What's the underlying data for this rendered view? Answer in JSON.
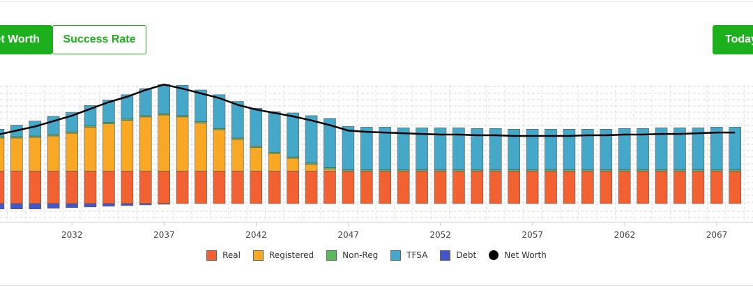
{
  "buttons": {
    "net_worth": "Net Worth",
    "success_rate": "Success Rate",
    "today": "Today's $"
  },
  "colors": {
    "accent": "#1db01d",
    "real": "#f26131",
    "registered": "#f9a825",
    "nonreg": "#5cb85c",
    "tfsa": "#45a8c8",
    "debt": "#4557c8",
    "networth": "#000000"
  },
  "chart_data": {
    "type": "bar",
    "x": [
      2028,
      2029,
      2030,
      2031,
      2032,
      2033,
      2034,
      2035,
      2036,
      2037,
      2038,
      2039,
      2040,
      2041,
      2042,
      2043,
      2044,
      2045,
      2046,
      2047,
      2048,
      2049,
      2050,
      2051,
      2052,
      2053,
      2054,
      2055,
      2056,
      2057,
      2058,
      2059,
      2060,
      2061,
      2062,
      2063,
      2064,
      2065,
      2066,
      2067,
      2068
    ],
    "xticks": [
      "2032",
      "2037",
      "2042",
      "2047",
      "2052",
      "2057",
      "2062",
      "2067"
    ],
    "series": [
      {
        "name": "Real",
        "color_key": "real",
        "values": [
          48,
          48,
          48,
          48,
          48,
          48,
          48,
          48,
          48,
          48,
          48,
          48,
          48,
          48,
          48,
          48,
          48,
          48,
          48,
          48,
          48,
          48,
          48,
          48,
          48,
          48,
          48,
          48,
          48,
          48,
          48,
          48,
          48,
          48,
          48,
          48,
          48,
          48,
          48,
          48,
          48
        ]
      },
      {
        "name": "Registered",
        "color_key": "registered",
        "values": [
          49,
          49,
          50,
          52,
          56,
          65,
          70,
          75,
          80,
          83,
          80,
          71,
          61,
          47,
          35,
          26,
          19,
          10,
          3,
          0,
          0,
          0,
          0,
          0,
          0,
          0,
          0,
          0,
          0,
          0,
          0,
          0,
          0,
          0,
          0,
          0,
          0,
          0,
          0,
          0,
          0
        ]
      },
      {
        "name": "Non-Reg",
        "color_key": "nonreg",
        "values": [
          2,
          2,
          2,
          2,
          2,
          2,
          2,
          2,
          2,
          2,
          2,
          2,
          2,
          2,
          2,
          2,
          2,
          2,
          2,
          2,
          2,
          2,
          2,
          2,
          2,
          2,
          2,
          2,
          2,
          2,
          2,
          2,
          2,
          2,
          2,
          2,
          2,
          2,
          2,
          2,
          2
        ]
      },
      {
        "name": "TFSA",
        "color_key": "tfsa",
        "values": [
          11,
          17,
          22,
          27,
          29,
          30,
          33,
          36,
          40,
          43,
          45,
          47,
          50,
          54,
          56,
          60,
          65,
          70,
          73,
          64,
          63,
          63,
          62,
          62,
          62,
          62,
          61,
          61,
          60,
          60,
          60,
          60,
          60,
          60,
          61,
          61,
          62,
          62,
          62,
          63,
          63
        ]
      },
      {
        "name": "Debt",
        "color_key": "debt",
        "values": [
          -8,
          -8,
          -8,
          -7,
          -6,
          -5,
          -4,
          -3,
          -2,
          -1,
          0,
          0,
          0,
          0,
          0,
          0,
          0,
          0,
          0,
          0,
          0,
          0,
          0,
          0,
          0,
          0,
          0,
          0,
          0,
          0,
          0,
          0,
          0,
          0,
          0,
          0,
          0,
          0,
          0,
          0,
          0
        ]
      },
      {
        "name": "Net Worth",
        "color_key": "networth",
        "type": "line",
        "values": [
          102,
          108,
          114,
          122,
          130,
          140,
          150,
          158,
          168,
          176,
          170,
          163,
          156,
          146,
          139,
          134,
          129,
          123,
          116,
          108,
          106,
          105,
          104,
          103,
          102,
          102,
          101,
          101,
          100,
          100,
          100,
          100,
          101,
          101,
          102,
          102,
          103,
          103,
          104,
          105,
          105
        ]
      }
    ],
    "ylim": [
      -15,
      180
    ],
    "grid": true,
    "legend": "bottom"
  }
}
